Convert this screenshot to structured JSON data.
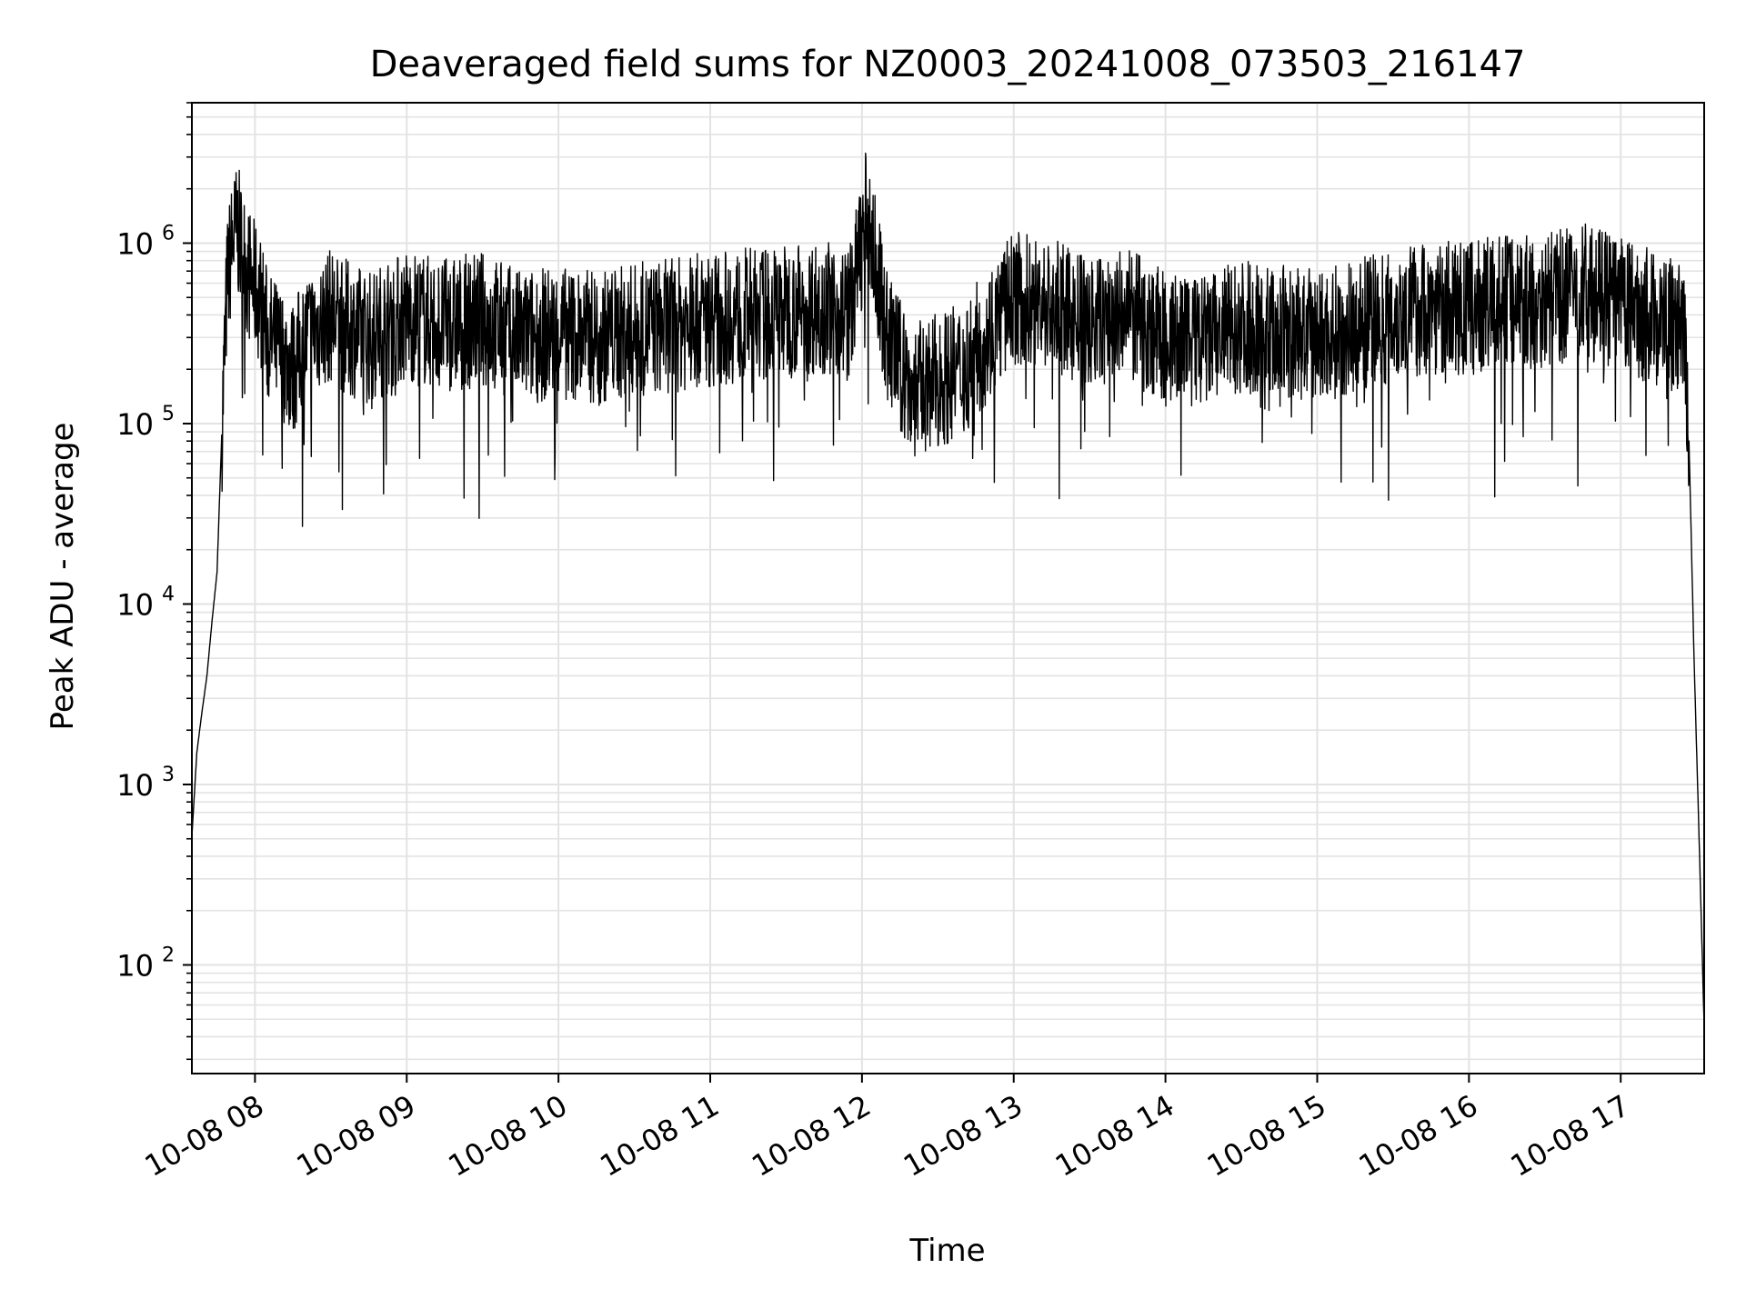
{
  "chart_data": {
    "type": "line",
    "title": "Deaveraged field sums for NZ0003_20241008_073503_216147",
    "xlabel": "Time",
    "ylabel": "Peak ADU - average",
    "yscale": "log",
    "ylim": [
      25,
      6000000
    ],
    "xlim": [
      "2024-10-08 07:35:03",
      "2024-10-08 17:33:00"
    ],
    "grid": true,
    "line_color": "#000000",
    "grid_color": "#e3e3e3",
    "x_ticks": [
      {
        "t": "2024-10-08 08:00",
        "label": "10-08 08"
      },
      {
        "t": "2024-10-08 09:00",
        "label": "10-08 09"
      },
      {
        "t": "2024-10-08 10:00",
        "label": "10-08 10"
      },
      {
        "t": "2024-10-08 11:00",
        "label": "10-08 11"
      },
      {
        "t": "2024-10-08 12:00",
        "label": "10-08 12"
      },
      {
        "t": "2024-10-08 13:00",
        "label": "10-08 13"
      },
      {
        "t": "2024-10-08 14:00",
        "label": "10-08 14"
      },
      {
        "t": "2024-10-08 15:00",
        "label": "10-08 15"
      },
      {
        "t": "2024-10-08 16:00",
        "label": "10-08 16"
      },
      {
        "t": "2024-10-08 17:00",
        "label": "10-08 17"
      }
    ],
    "y_ticks": [
      {
        "value": 100,
        "base": "10",
        "exp": "2"
      },
      {
        "value": 1000,
        "base": "10",
        "exp": "3"
      },
      {
        "value": 10000,
        "base": "10",
        "exp": "4"
      },
      {
        "value": 100000,
        "base": "10",
        "exp": "5"
      },
      {
        "value": 1000000,
        "base": "10",
        "exp": "6"
      }
    ],
    "series": [
      {
        "x": [
          "2024-10-08 07:35",
          "2024-10-08 07:37",
          "2024-10-08 07:39",
          "2024-10-08 07:41",
          "2024-10-08 07:43",
          "2024-10-08 07:45",
          "2024-10-08 07:47",
          "2024-10-08 07:49",
          "2024-10-08 07:51",
          "2024-10-08 07:53",
          "2024-10-08 07:55",
          "2024-10-08 07:57",
          "2024-10-08 07:59",
          "2024-10-08 08:02",
          "2024-10-08 08:05",
          "2024-10-08 08:10",
          "2024-10-08 08:15",
          "2024-10-08 08:20",
          "2024-10-08 08:25",
          "2024-10-08 08:30",
          "2024-10-08 08:35",
          "2024-10-08 08:45",
          "2024-10-08 09:00",
          "2024-10-08 09:15",
          "2024-10-08 09:30",
          "2024-10-08 09:45",
          "2024-10-08 10:00",
          "2024-10-08 10:15",
          "2024-10-08 10:30",
          "2024-10-08 10:45",
          "2024-10-08 11:00",
          "2024-10-08 11:15",
          "2024-10-08 11:30",
          "2024-10-08 11:45",
          "2024-10-08 11:55",
          "2024-10-08 12:02",
          "2024-10-08 12:10",
          "2024-10-08 12:20",
          "2024-10-08 12:40",
          "2024-10-08 13:00",
          "2024-10-08 13:15",
          "2024-10-08 13:30",
          "2024-10-08 13:45",
          "2024-10-08 14:00",
          "2024-10-08 14:15",
          "2024-10-08 14:30",
          "2024-10-08 14:45",
          "2024-10-08 15:00",
          "2024-10-08 15:15",
          "2024-10-08 15:30",
          "2024-10-08 15:45",
          "2024-10-08 16:00",
          "2024-10-08 16:15",
          "2024-10-08 16:30",
          "2024-10-08 16:45",
          "2024-10-08 17:00",
          "2024-10-08 17:10",
          "2024-10-08 17:20",
          "2024-10-08 17:25",
          "2024-10-08 17:27",
          "2024-10-08 17:29",
          "2024-10-08 17:31",
          "2024-10-08 17:33"
        ],
        "y": [
          500,
          1500,
          2500,
          4000,
          8000,
          15000,
          100000,
          600000,
          1000000,
          1200000,
          900000,
          700000,
          600000,
          500000,
          300000,
          250000,
          200000,
          300000,
          350000,
          400000,
          350000,
          300000,
          400000,
          350000,
          380000,
          300000,
          320000,
          300000,
          330000,
          350000,
          380000,
          400000,
          420000,
          450000,
          400000,
          1500000,
          300000,
          150000,
          200000,
          500000,
          450000,
          350000,
          400000,
          300000,
          280000,
          350000,
          320000,
          300000,
          350000,
          400000,
          450000,
          420000,
          500000,
          480000,
          550000,
          450000,
          400000,
          350000,
          300000,
          80000,
          5000,
          500,
          45
        ]
      }
    ]
  }
}
